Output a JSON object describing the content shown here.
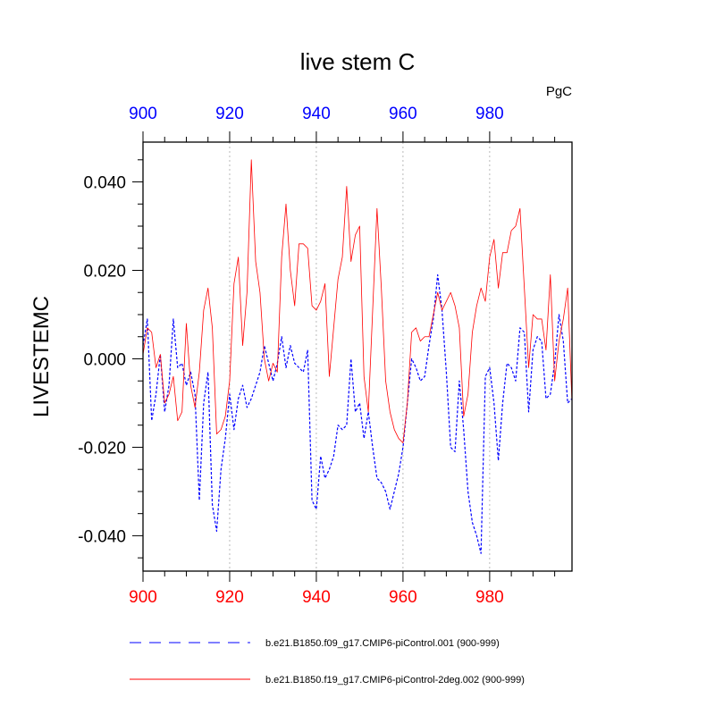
{
  "chart_data": {
    "type": "line",
    "title": "live stem C",
    "units": "PgC",
    "ylabel": "LIVESTEMC",
    "xlabel": "",
    "xlim": [
      900,
      999
    ],
    "ylim": [
      -0.048,
      0.049
    ],
    "x_ticks": [
      900,
      920,
      940,
      960,
      980
    ],
    "x_tick_labels": [
      "900",
      "920",
      "940",
      "960",
      "980"
    ],
    "x_tick_labels_top": [
      "900",
      "920",
      "940",
      "960",
      "980"
    ],
    "y_ticks": [
      0.04,
      0.02,
      0.0,
      -0.02,
      -0.04
    ],
    "y_tick_labels": [
      "0.040",
      "0.020",
      "0.000",
      "-0.020",
      "-0.040"
    ],
    "vertical_gridlines": [
      920,
      940,
      960,
      980
    ],
    "x_start": 900,
    "series": [
      {
        "name": "b.e21.B1850.f09_g17.CMIP6-piControl.001 (900-999)",
        "color": "#0000ff",
        "style": "dashed",
        "values": [
          0.003,
          0.009,
          -0.014,
          -0.008,
          0.001,
          -0.012,
          -0.006,
          0.009,
          -0.002,
          -0.001,
          -0.006,
          -0.003,
          -0.008,
          -0.032,
          -0.01,
          -0.003,
          -0.033,
          -0.039,
          -0.025,
          -0.018,
          -0.008,
          -0.016,
          -0.009,
          -0.006,
          -0.011,
          -0.009,
          -0.006,
          -0.003,
          0.003,
          -0.001,
          -0.005,
          -0.001,
          0.005,
          -0.002,
          0.003,
          -0.001,
          -0.002,
          -0.003,
          0.002,
          -0.032,
          -0.034,
          -0.022,
          -0.027,
          -0.025,
          -0.022,
          -0.015,
          -0.016,
          -0.015,
          0.0,
          -0.012,
          -0.01,
          -0.018,
          -0.012,
          -0.02,
          -0.027,
          -0.028,
          -0.03,
          -0.034,
          -0.03,
          -0.026,
          -0.02,
          -0.01,
          0.0,
          -0.002,
          -0.005,
          -0.004,
          0.003,
          0.009,
          0.019,
          0.011,
          -0.003,
          -0.02,
          -0.021,
          -0.005,
          -0.016,
          -0.03,
          -0.037,
          -0.04,
          -0.044,
          -0.004,
          -0.002,
          -0.01,
          -0.023,
          -0.01,
          -0.001,
          -0.002,
          -0.005,
          0.007,
          0.006,
          -0.012,
          0.002,
          0.005,
          0.004,
          -0.009,
          -0.008,
          -0.001,
          0.01,
          0.004,
          -0.01,
          -0.009
        ]
      },
      {
        "name": "b.e21.B1850.f19_g17.CMIP6-piControl-2deg.002 (900-999)",
        "color": "#ff0000",
        "style": "solid",
        "values": [
          0.001,
          0.007,
          0.006,
          -0.002,
          0.001,
          -0.01,
          -0.008,
          -0.004,
          -0.014,
          -0.012,
          0.008,
          -0.006,
          -0.011,
          -0.003,
          0.011,
          0.016,
          0.007,
          -0.017,
          -0.016,
          -0.013,
          -0.005,
          0.017,
          0.023,
          0.003,
          0.015,
          0.045,
          0.022,
          0.015,
          0.0,
          -0.005,
          -0.001,
          -0.003,
          0.023,
          0.035,
          0.02,
          0.012,
          0.026,
          0.026,
          0.025,
          0.012,
          0.011,
          0.013,
          0.017,
          -0.004,
          0.007,
          0.018,
          0.023,
          0.039,
          0.022,
          0.028,
          0.03,
          -0.004,
          -0.012,
          0.011,
          0.034,
          0.016,
          -0.005,
          -0.012,
          -0.016,
          -0.018,
          -0.019,
          -0.01,
          0.006,
          0.007,
          0.004,
          0.005,
          0.005,
          0.01,
          0.015,
          0.011,
          0.013,
          0.015,
          0.012,
          0.007,
          -0.013,
          -0.008,
          0.006,
          0.012,
          0.016,
          0.013,
          0.023,
          0.027,
          0.016,
          0.024,
          0.024,
          0.029,
          0.03,
          0.034,
          0.016,
          -0.002,
          0.01,
          0.009,
          0.009,
          0.002,
          0.019,
          -0.005,
          0.004,
          0.009,
          0.016,
          -0.01
        ]
      }
    ]
  }
}
